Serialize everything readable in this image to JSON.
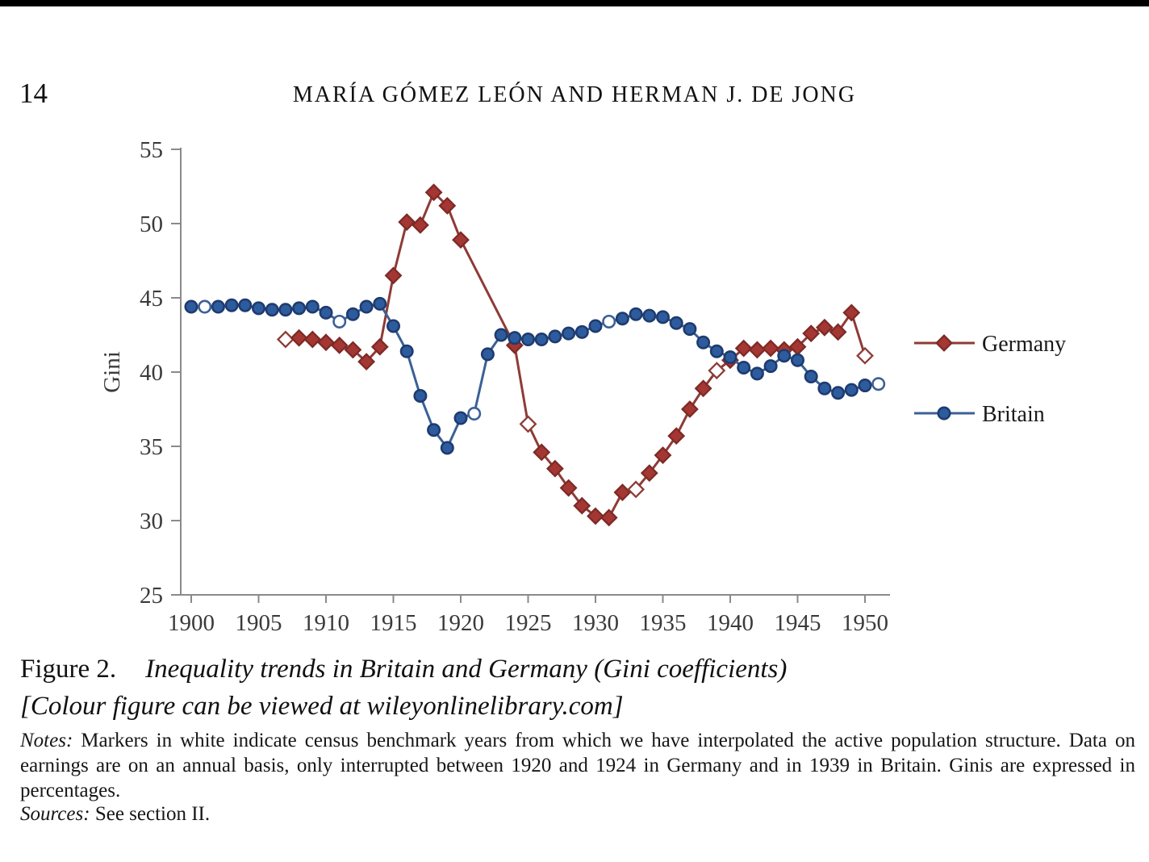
{
  "page": {
    "page_number": "14",
    "running_title": "MARÍA GÓMEZ LEÓN AND HERMAN J. DE JONG"
  },
  "figure": {
    "caption_label": "Figure 2.",
    "caption_title": "Inequality trends in Britain and Germany (Gini coefficients)",
    "caption_colour_note": "[Colour figure can be viewed at wileyonlinelibrary.com]",
    "notes_label": "Notes:",
    "notes_text": " Markers in white indicate census benchmark years from which we have interpolated the active population structure. Data on earnings are on an annual basis, only interrupted between 1920 and 1924 in Germany and in 1939 in Britain. Ginis are expressed in percentages.",
    "sources_label": "Sources:",
    "sources_text": " See section II."
  },
  "chart_data": {
    "type": "line",
    "title": "",
    "xlabel": "",
    "ylabel": "Gini",
    "ylim": [
      25,
      55
    ],
    "ytick_step": 5,
    "xticks": [
      1900,
      1905,
      1910,
      1915,
      1920,
      1925,
      1930,
      1935,
      1940,
      1945,
      1950
    ],
    "grid": false,
    "legend_position": "right",
    "axis_color": "#8a8a8a",
    "note": "open (white) markers = census benchmark years; Germany series interrupted 1921-1923",
    "series": [
      {
        "name": "Germany",
        "marker": "diamond",
        "line_color": "#8E3B36",
        "marker_fill": "#A43733",
        "marker_stroke": "#7E2A26",
        "open_marker_years": [
          1907,
          1925,
          1933,
          1939,
          1950
        ],
        "points": [
          [
            1907,
            42.2
          ],
          [
            1908,
            42.3
          ],
          [
            1909,
            42.2
          ],
          [
            1910,
            42.0
          ],
          [
            1911,
            41.8
          ],
          [
            1912,
            41.5
          ],
          [
            1913,
            40.7
          ],
          [
            1914,
            41.7
          ],
          [
            1915,
            46.5
          ],
          [
            1916,
            50.1
          ],
          [
            1917,
            49.9
          ],
          [
            1918,
            52.1
          ],
          [
            1919,
            51.2
          ],
          [
            1920,
            48.9
          ],
          [
            1924,
            41.8
          ],
          [
            1925,
            36.5
          ],
          [
            1926,
            34.6
          ],
          [
            1927,
            33.5
          ],
          [
            1928,
            32.2
          ],
          [
            1929,
            31.0
          ],
          [
            1930,
            30.3
          ],
          [
            1931,
            30.2
          ],
          [
            1932,
            31.9
          ],
          [
            1933,
            32.1
          ],
          [
            1934,
            33.2
          ],
          [
            1935,
            34.4
          ],
          [
            1936,
            35.7
          ],
          [
            1937,
            37.5
          ],
          [
            1938,
            38.9
          ],
          [
            1939,
            40.1
          ],
          [
            1940,
            40.8
          ],
          [
            1941,
            41.6
          ],
          [
            1942,
            41.5
          ],
          [
            1943,
            41.6
          ],
          [
            1944,
            41.5
          ],
          [
            1945,
            41.7
          ],
          [
            1946,
            42.6
          ],
          [
            1947,
            43.0
          ],
          [
            1948,
            42.7
          ],
          [
            1949,
            44.0
          ],
          [
            1950,
            41.1
          ]
        ]
      },
      {
        "name": "Britain",
        "marker": "circle",
        "line_color": "#3B6096",
        "marker_fill": "#2D5C9E",
        "marker_stroke": "#1F3B6E",
        "open_marker_years": [
          1901,
          1911,
          1921,
          1931,
          1951
        ],
        "points": [
          [
            1900,
            44.4
          ],
          [
            1901,
            44.4
          ],
          [
            1902,
            44.4
          ],
          [
            1903,
            44.5
          ],
          [
            1904,
            44.5
          ],
          [
            1905,
            44.3
          ],
          [
            1906,
            44.2
          ],
          [
            1907,
            44.2
          ],
          [
            1908,
            44.3
          ],
          [
            1909,
            44.4
          ],
          [
            1910,
            44.0
          ],
          [
            1911,
            43.4
          ],
          [
            1912,
            43.9
          ],
          [
            1913,
            44.4
          ],
          [
            1914,
            44.6
          ],
          [
            1915,
            43.1
          ],
          [
            1916,
            41.4
          ],
          [
            1917,
            38.4
          ],
          [
            1918,
            36.1
          ],
          [
            1919,
            34.9
          ],
          [
            1920,
            36.9
          ],
          [
            1921,
            37.2
          ],
          [
            1922,
            41.2
          ],
          [
            1923,
            42.5
          ],
          [
            1924,
            42.3
          ],
          [
            1925,
            42.2
          ],
          [
            1926,
            42.2
          ],
          [
            1927,
            42.4
          ],
          [
            1928,
            42.6
          ],
          [
            1929,
            42.7
          ],
          [
            1930,
            43.1
          ],
          [
            1931,
            43.4
          ],
          [
            1932,
            43.6
          ],
          [
            1933,
            43.9
          ],
          [
            1934,
            43.8
          ],
          [
            1935,
            43.7
          ],
          [
            1936,
            43.3
          ],
          [
            1937,
            42.9
          ],
          [
            1938,
            42.0
          ],
          [
            1939,
            41.4
          ],
          [
            1940,
            41.0
          ],
          [
            1941,
            40.3
          ],
          [
            1942,
            39.9
          ],
          [
            1943,
            40.4
          ],
          [
            1944,
            41.1
          ],
          [
            1945,
            40.8
          ],
          [
            1946,
            39.7
          ],
          [
            1947,
            38.9
          ],
          [
            1948,
            38.6
          ],
          [
            1949,
            38.8
          ],
          [
            1950,
            39.1
          ],
          [
            1951,
            39.2
          ]
        ]
      }
    ]
  }
}
